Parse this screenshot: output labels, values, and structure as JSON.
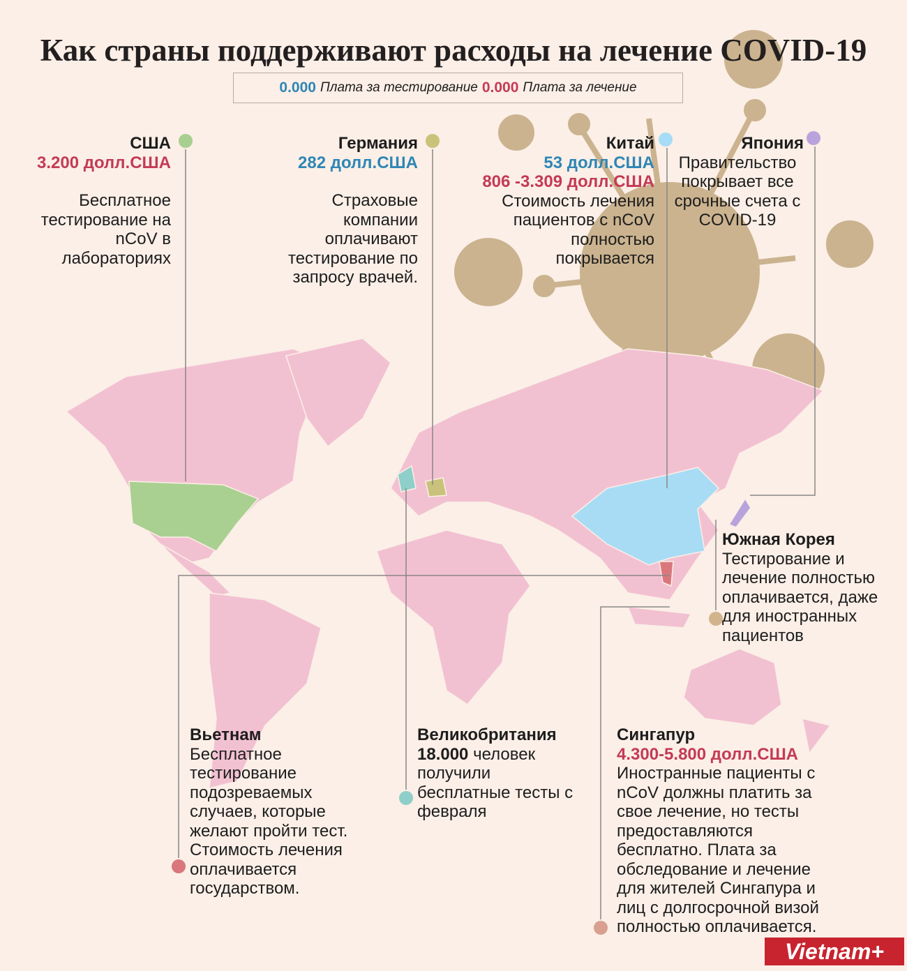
{
  "title": "Как страны поддерживают расходы на лечение COVID-19",
  "legend": {
    "testing_value": "0.000",
    "testing_label": "Плата за тестирование",
    "treatment_value": "0.000",
    "treatment_label": "Плата за лечение"
  },
  "countries": [
    {
      "name": "США",
      "treatment_cost": "3.200 долл.США",
      "description": "Бесплатное тестирование на nCoV в лабораториях"
    },
    {
      "name": "Германия",
      "testing_cost": "282 долл.США",
      "description": "Страховые компании оплачивают тестирование по запросу врачей."
    },
    {
      "name": "Китай",
      "testing_cost": "53 долл.США",
      "treatment_cost": "806 -3.309 долл.США",
      "description": "Стоимость лечения пациентов с nCoV полностью покрывается"
    },
    {
      "name": "Япония",
      "description": "Правительство покрывает все срочные счета с COVID-19"
    },
    {
      "name": "Южная Корея",
      "description": "Тестирование и лечение полностью оплачивается, даже для иностранных пациентов"
    },
    {
      "name": "Вьетнам",
      "description": "Бесплатное тестирование подозреваемых случаев, которые желают пройти тест. Стоимость лечения оплачивается государством."
    },
    {
      "name": "Великобритания",
      "highlight": "18.000",
      "description": "человек получили бесплатные тесты с февраля"
    },
    {
      "name": "Сингапур",
      "treatment_cost": "4.300-5.800 долл.США",
      "description": "Иностранные пациенты с nCoV должны платить за свое лечение, но тесты предоставляются бесплатно. Плата за обследование и лечение для жителей Сингапура и лиц с долгосрочной визой полностью оплачивается."
    }
  ],
  "logo": "Vietnam+"
}
